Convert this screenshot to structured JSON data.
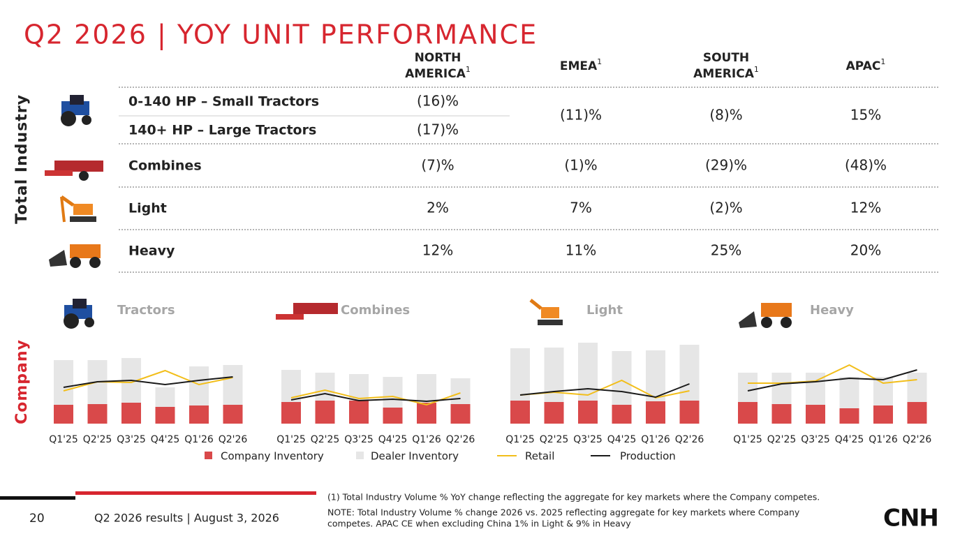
{
  "header": {
    "title": "Q2 2026 | YOY UNIT PERFORMANCE"
  },
  "side_labels": {
    "industry": "Total Industry",
    "company": "Company"
  },
  "table": {
    "columns": [
      {
        "label": [
          "NORTH",
          "AMERICA"
        ],
        "note": "1"
      },
      {
        "label": [
          "EMEA"
        ],
        "note": "1"
      },
      {
        "label": [
          "SOUTH",
          "AMERICA"
        ],
        "note": "1"
      },
      {
        "label": [
          "APAC"
        ],
        "note": "1"
      }
    ],
    "tractors": {
      "rows": [
        {
          "label": "0-140 HP – Small Tractors",
          "value": "(16)%"
        },
        {
          "label": "140+ HP – Large Tractors",
          "value": "(17)%"
        }
      ],
      "shared": [
        "(11)%",
        "(8)%",
        "15%"
      ]
    },
    "rows": [
      {
        "label": "Combines",
        "values": [
          "(7)%",
          "(1)%",
          "(29)%",
          "(48)%"
        ]
      },
      {
        "label": "Light",
        "values": [
          "2%",
          "7%",
          "(2)%",
          "12%"
        ]
      },
      {
        "label": "Heavy",
        "values": [
          "12%",
          "11%",
          "25%",
          "20%"
        ]
      }
    ]
  },
  "chart_data": [
    {
      "type": "combo",
      "title": "Tractors",
      "categories": [
        "Q1'25",
        "Q2'25",
        "Q3'25",
        "Q4'25",
        "Q1'26",
        "Q2'26"
      ],
      "ylim": [
        0,
        125
      ],
      "series": [
        {
          "name": "Company Inventory",
          "kind": "bar",
          "color": "#d9494a",
          "values": [
            27,
            28,
            30,
            24,
            26,
            27
          ]
        },
        {
          "name": "Dealer Inventory",
          "kind": "bar",
          "color": "#e6e6e6",
          "values": [
            64,
            63,
            64,
            28,
            56,
            57
          ]
        },
        {
          "name": "Retail",
          "kind": "line",
          "color": "#f2be1a",
          "values": [
            47,
            60,
            59,
            76,
            56,
            66
          ]
        },
        {
          "name": "Production",
          "kind": "line",
          "color": "#1a1a1a",
          "values": [
            52,
            60,
            62,
            56,
            62,
            67
          ]
        }
      ]
    },
    {
      "type": "combo",
      "title": "Combines",
      "categories": [
        "Q1'25",
        "Q2'25",
        "Q3'25",
        "Q4'25",
        "Q1'26",
        "Q2'26"
      ],
      "ylim": [
        0,
        125
      ],
      "series": [
        {
          "name": "Company Inventory",
          "kind": "bar",
          "color": "#d9494a",
          "values": [
            31,
            33,
            33,
            23,
            30,
            28
          ]
        },
        {
          "name": "Dealer Inventory",
          "kind": "bar",
          "color": "#e6e6e6",
          "values": [
            46,
            40,
            38,
            44,
            41,
            37
          ]
        },
        {
          "name": "Retail",
          "kind": "line",
          "color": "#f2be1a",
          "values": [
            37,
            48,
            36,
            39,
            27,
            44
          ]
        },
        {
          "name": "Production",
          "kind": "line",
          "color": "#1a1a1a",
          "values": [
            34,
            43,
            33,
            35,
            32,
            36
          ]
        }
      ]
    },
    {
      "type": "combo",
      "title": "Light",
      "categories": [
        "Q1'25",
        "Q2'25",
        "Q3'25",
        "Q4'25",
        "Q1'26",
        "Q2'26"
      ],
      "ylim": [
        0,
        125
      ],
      "series": [
        {
          "name": "Company Inventory",
          "kind": "bar",
          "color": "#d9494a",
          "values": [
            33,
            31,
            33,
            27,
            32,
            33
          ]
        },
        {
          "name": "Dealer Inventory",
          "kind": "bar",
          "color": "#e6e6e6",
          "values": [
            75,
            78,
            83,
            77,
            73,
            80
          ]
        },
        {
          "name": "Retail",
          "kind": "line",
          "color": "#f2be1a",
          "values": [
            41,
            45,
            41,
            62,
            37,
            47
          ]
        },
        {
          "name": "Production",
          "kind": "line",
          "color": "#1a1a1a",
          "values": [
            41,
            46,
            50,
            46,
            38,
            57
          ]
        }
      ]
    },
    {
      "type": "combo",
      "title": "Heavy",
      "categories": [
        "Q1'25",
        "Q2'25",
        "Q3'25",
        "Q4'25",
        "Q1'26",
        "Q2'26"
      ],
      "ylim": [
        0,
        125
      ],
      "series": [
        {
          "name": "Company Inventory",
          "kind": "bar",
          "color": "#d9494a",
          "values": [
            31,
            28,
            27,
            22,
            26,
            31
          ]
        },
        {
          "name": "Dealer Inventory",
          "kind": "bar",
          "color": "#e6e6e6",
          "values": [
            42,
            45,
            46,
            45,
            41,
            42
          ]
        },
        {
          "name": "Retail",
          "kind": "line",
          "color": "#f2be1a",
          "values": [
            58,
            58,
            61,
            84,
            58,
            63
          ]
        },
        {
          "name": "Production",
          "kind": "line",
          "color": "#1a1a1a",
          "values": [
            47,
            57,
            60,
            65,
            63,
            77
          ]
        }
      ]
    }
  ],
  "footer": {
    "page": "20",
    "event": "Q2 2026 results | August 3, 2026",
    "notes": [
      "(1) Total Industry Volume % YoY change reflecting the aggregate for key markets where the Company competes.",
      "NOTE: Total Industry Volume % change 2026 vs. 2025 reflecting aggregate for key markets where Company",
      "competes. APAC CE when excluding China 1% in Light & 9% in Heavy"
    ],
    "logo": "CNH"
  }
}
